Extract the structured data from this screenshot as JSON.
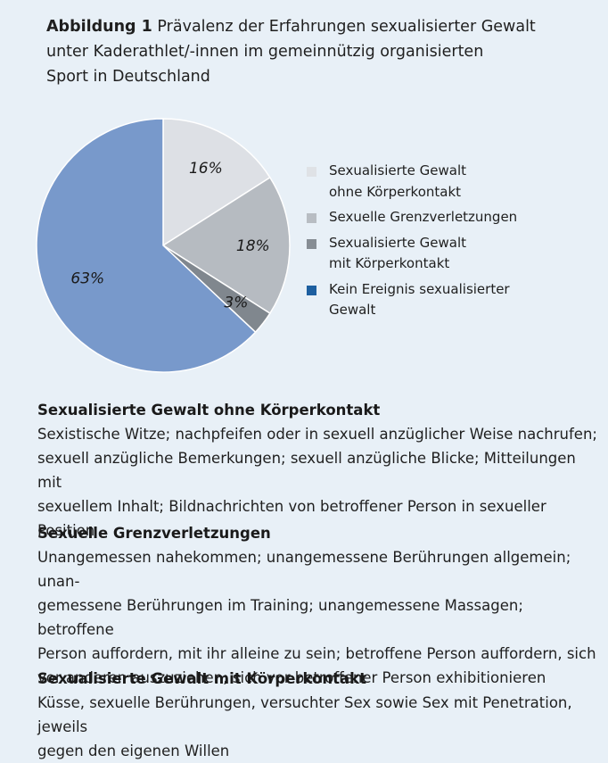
{
  "figure": {
    "label": "Abbildung 1",
    "title_line1": "Prävalenz der Erfahrungen sexualisierter Gewalt",
    "title_line2": "unter Kaderathlet/-innen im gemeinnützig organisierten",
    "title_line3": "Sport in Deutschland"
  },
  "chart_data": {
    "type": "pie",
    "title": "Prävalenz der Erfahrungen sexualisierter Gewalt unter Kaderathlet/-innen im gemeinnützig organisierten Sport in Deutschland",
    "slices": [
      {
        "label": "Sexualisierte Gewalt ohne Körperkontakt",
        "value": 16,
        "display": "16%",
        "color": "#dde0e5"
      },
      {
        "label": "Sexuelle Grenzverletzungen",
        "value": 18,
        "display": "18%",
        "color": "#b6bbc1"
      },
      {
        "label": "Sexualisierte Gewalt mit Körperkontakt",
        "value": 3,
        "display": "3%",
        "color": "#80878e"
      },
      {
        "label": "Kein Ereignis sexualisierter Gewalt",
        "value": 63,
        "display": "63%",
        "color": "#7899cb"
      }
    ],
    "legend_placement": "right",
    "legend_swatch_colors": [
      "#dfe2e6",
      "#b8bdc3",
      "#868d94",
      "#1d5fa0"
    ]
  },
  "legend": {
    "items": [
      {
        "line1": "Sexualisierte Gewalt",
        "line2": "ohne Körperkontakt"
      },
      {
        "line1": "Sexuelle Grenzverletzungen",
        "line2": ""
      },
      {
        "line1": "Sexualisierte Gewalt",
        "line2": "mit Körperkontakt"
      },
      {
        "line1": "Kein Ereignis sexualisierter",
        "line2": "Gewalt"
      }
    ]
  },
  "sections": [
    {
      "heading": "Sexualisierte Gewalt ohne Körperkontakt",
      "lines": [
        "Sexistische Witze; nachpfeifen oder in sexuell anzüglicher Weise nachrufen;",
        "sexuell anzügliche Bemerkungen; sexuell anzügliche Blicke; Mitteilungen mit",
        "sexuellem Inhalt; Bildnachrichten von betroffener Person in sexueller Position"
      ]
    },
    {
      "heading": "Sexuelle Grenzverletzungen",
      "lines": [
        "Unangemessen nahekommen; unangemessene Berührungen allgemein; unan-",
        "gemessene Berührungen im Training; unangemessene Massagen; betroffene",
        "Person auffordern, mit ihr alleine zu sein; betroffene Person auffordern, sich",
        "vor anderen auszuziehen; sich vor betroffener Person exhibitionieren"
      ]
    },
    {
      "heading": "Sexualisierte Gewalt mit Körperkontakt",
      "lines": [
        "Küsse, sexuelle Berührungen, versuchter Sex sowie Sex mit Penetration, jeweils",
        "gegen den eigenen Willen"
      ]
    }
  ]
}
